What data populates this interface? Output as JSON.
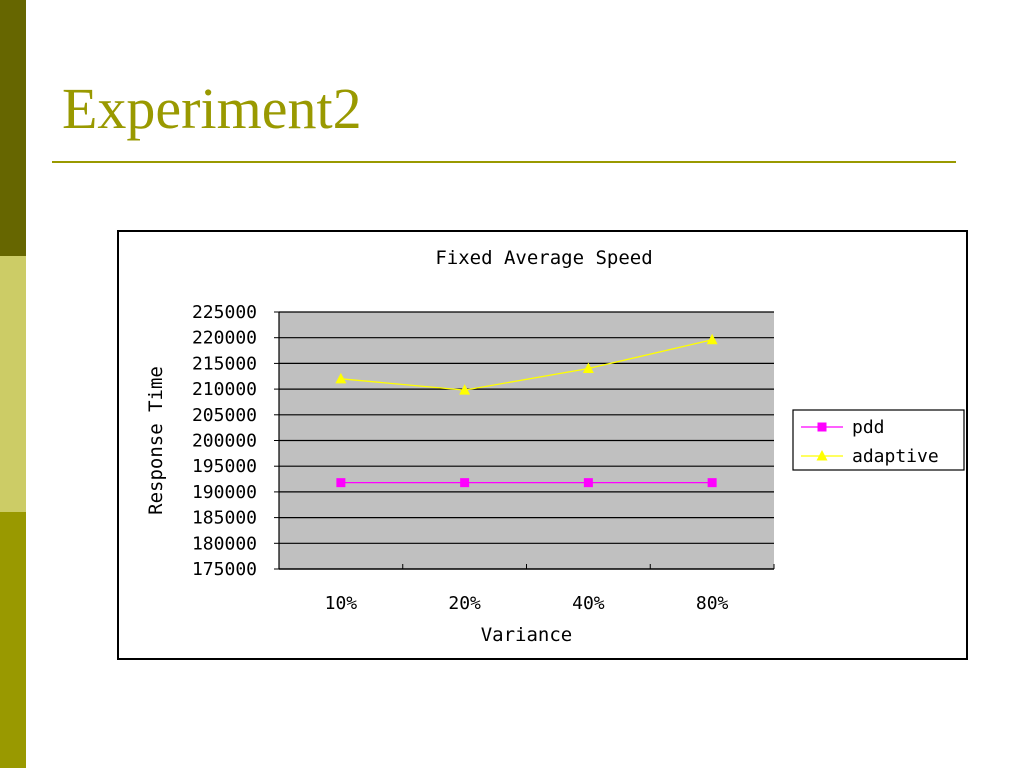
{
  "slide": {
    "title": "Experiment2"
  },
  "theme": {
    "accent": "#999900",
    "bar_dark": "#666600",
    "bar_light": "#cccc66",
    "plot_bg": "#c0c0c0"
  },
  "chart_data": {
    "type": "line",
    "title": "Fixed Average Speed",
    "xlabel": "Variance",
    "ylabel": "Response Time",
    "categories": [
      "10%",
      "20%",
      "40%",
      "80%"
    ],
    "ylim": [
      175000,
      225000
    ],
    "ytick_step": 5000,
    "grid": true,
    "legend_position": "right",
    "series": [
      {
        "name": "pdd",
        "color": "#ff00ff",
        "marker": "square",
        "values": [
          191800,
          191800,
          191800,
          191800
        ]
      },
      {
        "name": "adaptive",
        "color": "#ffff00",
        "marker": "triangle",
        "values": [
          212000,
          209800,
          214000,
          219600
        ]
      }
    ]
  }
}
